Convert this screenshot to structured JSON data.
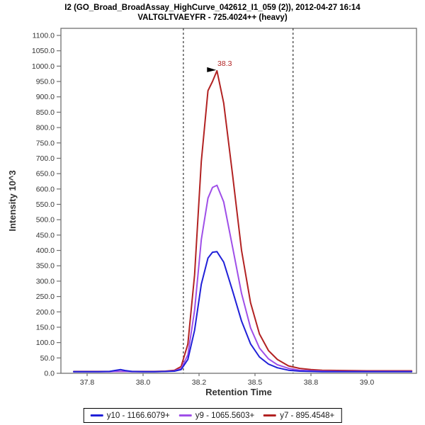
{
  "header": {
    "title_line1": "I2 (GO_Broad_BroadAssay_HighCurve_042612_I1_059 (2)), 2012-04-27 16:14",
    "title_line2": "VALTGLTVAEYFR - 725.4024++ (heavy)"
  },
  "chart_data": {
    "type": "line",
    "title": "I2 (GO_Broad_BroadAssay_HighCurve_042612_I1_059 (2)), 2012-04-27 16:14",
    "subtitle": "VALTGLTVAEYFR - 725.4024++ (heavy)",
    "xlabel": "Retention Time",
    "ylabel": "Intensity 10^3",
    "xlim": [
      37.63,
      39.22
    ],
    "ylim": [
      0,
      1123
    ],
    "grid": false,
    "legend_position": "bottom",
    "x_ticks": [
      {
        "value": 37.75,
        "label": "37.8"
      },
      {
        "value": 38.0,
        "label": "38.0"
      },
      {
        "value": 38.25,
        "label": "38.2"
      },
      {
        "value": 38.5,
        "label": "38.5"
      },
      {
        "value": 38.75,
        "label": "38.8"
      },
      {
        "value": 39.0,
        "label": "39.0"
      }
    ],
    "y_ticks": [
      0,
      50,
      100,
      150,
      200,
      250,
      300,
      350,
      400,
      450,
      500,
      550,
      600,
      650,
      700,
      750,
      800,
      850,
      900,
      950,
      1000,
      1050,
      1100
    ],
    "y_tick_format": "one-decimal",
    "integration_boundaries": [
      38.18,
      38.67
    ],
    "annotation": {
      "text": "38.3",
      "x": 38.33,
      "y": 985
    },
    "series": [
      {
        "name": "y10 - 1166.6079+",
        "color": "#2020d8",
        "points": [
          [
            37.69,
            5
          ],
          [
            37.75,
            5
          ],
          [
            37.8,
            5
          ],
          [
            37.85,
            6
          ],
          [
            37.88,
            10
          ],
          [
            37.9,
            12
          ],
          [
            37.92,
            9
          ],
          [
            37.95,
            6
          ],
          [
            38.0,
            5
          ],
          [
            38.05,
            5
          ],
          [
            38.1,
            6
          ],
          [
            38.14,
            7
          ],
          [
            38.17,
            12
          ],
          [
            38.2,
            45
          ],
          [
            38.23,
            140
          ],
          [
            38.26,
            290
          ],
          [
            38.29,
            375
          ],
          [
            38.31,
            394
          ],
          [
            38.33,
            396
          ],
          [
            38.36,
            362
          ],
          [
            38.4,
            268
          ],
          [
            38.44,
            170
          ],
          [
            38.48,
            96
          ],
          [
            38.52,
            53
          ],
          [
            38.56,
            30
          ],
          [
            38.6,
            18
          ],
          [
            38.65,
            10
          ],
          [
            38.7,
            7
          ],
          [
            38.75,
            6
          ],
          [
            38.8,
            5
          ],
          [
            38.9,
            5
          ],
          [
            39.0,
            5
          ],
          [
            39.1,
            5
          ],
          [
            39.2,
            5
          ]
        ]
      },
      {
        "name": "y9 - 1065.5603+",
        "color": "#9f4fe8",
        "points": [
          [
            37.69,
            5
          ],
          [
            37.75,
            5
          ],
          [
            37.8,
            5
          ],
          [
            37.85,
            5
          ],
          [
            37.88,
            6
          ],
          [
            37.9,
            6
          ],
          [
            37.92,
            6
          ],
          [
            37.95,
            5
          ],
          [
            38.0,
            5
          ],
          [
            38.05,
            5
          ],
          [
            38.1,
            6
          ],
          [
            38.14,
            8
          ],
          [
            38.17,
            15
          ],
          [
            38.2,
            60
          ],
          [
            38.23,
            205
          ],
          [
            38.26,
            435
          ],
          [
            38.29,
            570
          ],
          [
            38.31,
            605
          ],
          [
            38.33,
            612
          ],
          [
            38.36,
            558
          ],
          [
            38.4,
            410
          ],
          [
            38.44,
            260
          ],
          [
            38.48,
            148
          ],
          [
            38.52,
            82
          ],
          [
            38.56,
            47
          ],
          [
            38.6,
            28
          ],
          [
            38.65,
            16
          ],
          [
            38.7,
            10
          ],
          [
            38.75,
            8
          ],
          [
            38.8,
            7
          ],
          [
            38.9,
            6
          ],
          [
            39.0,
            6
          ],
          [
            39.1,
            6
          ],
          [
            39.2,
            6
          ]
        ]
      },
      {
        "name": "y7 - 895.4548+",
        "color": "#b22222",
        "points": [
          [
            37.69,
            6
          ],
          [
            37.75,
            6
          ],
          [
            37.8,
            6
          ],
          [
            37.85,
            6
          ],
          [
            37.88,
            6
          ],
          [
            37.9,
            6
          ],
          [
            37.92,
            6
          ],
          [
            37.95,
            6
          ],
          [
            38.0,
            6
          ],
          [
            38.05,
            6
          ],
          [
            38.1,
            7
          ],
          [
            38.14,
            10
          ],
          [
            38.17,
            22
          ],
          [
            38.2,
            95
          ],
          [
            38.23,
            320
          ],
          [
            38.26,
            690
          ],
          [
            38.29,
            920
          ],
          [
            38.31,
            950
          ],
          [
            38.33,
            985
          ],
          [
            38.36,
            880
          ],
          [
            38.4,
            645
          ],
          [
            38.44,
            400
          ],
          [
            38.48,
            230
          ],
          [
            38.52,
            128
          ],
          [
            38.56,
            74
          ],
          [
            38.6,
            45
          ],
          [
            38.65,
            24
          ],
          [
            38.7,
            16
          ],
          [
            38.75,
            12
          ],
          [
            38.8,
            10
          ],
          [
            38.9,
            9
          ],
          [
            39.0,
            8
          ],
          [
            39.1,
            8
          ],
          [
            39.2,
            8
          ]
        ]
      }
    ],
    "colors": {
      "annotation": "#b22222",
      "boundary": "#333333",
      "axis_line": "#707070",
      "axis_text": "#333333",
      "title_text": "#000000"
    }
  }
}
